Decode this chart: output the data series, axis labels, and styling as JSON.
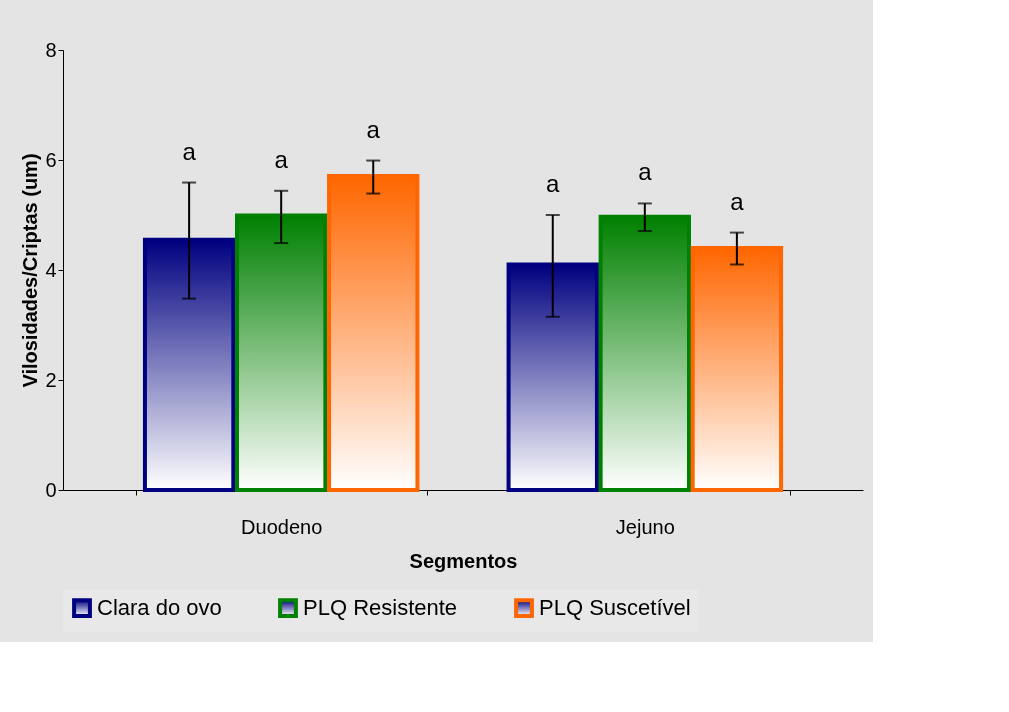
{
  "chart_data": {
    "type": "bar",
    "xlabel": "Segmentos",
    "ylabel": "Vilosidades/Criptas (um)",
    "categories": [
      "Duodeno",
      "Jejuno"
    ],
    "series": [
      {
        "name": "Clara do ovo",
        "color": "#000080",
        "values": [
          4.55,
          4.1
        ],
        "errors": [
          [
            3.48,
            5.59
          ],
          [
            3.15,
            5.0
          ]
        ],
        "value_labels": [
          "a",
          "a"
        ]
      },
      {
        "name": "PLQ Resistente",
        "color": "#008000",
        "values": [
          4.99,
          4.97
        ],
        "errors": [
          [
            4.49,
            5.44
          ],
          [
            4.71,
            5.21
          ]
        ],
        "value_labels": [
          "a",
          "a"
        ]
      },
      {
        "name": "PLQ Suscetível",
        "color": "#ff6600",
        "values": [
          5.71,
          4.4
        ],
        "errors": [
          [
            5.39,
            5.99
          ],
          [
            4.1,
            4.68
          ]
        ],
        "value_labels": [
          "a",
          "a"
        ]
      }
    ],
    "ylim": [
      0,
      8
    ],
    "yticks": [
      0,
      2,
      4,
      6,
      8
    ],
    "grid": false,
    "legend": "bottom"
  }
}
